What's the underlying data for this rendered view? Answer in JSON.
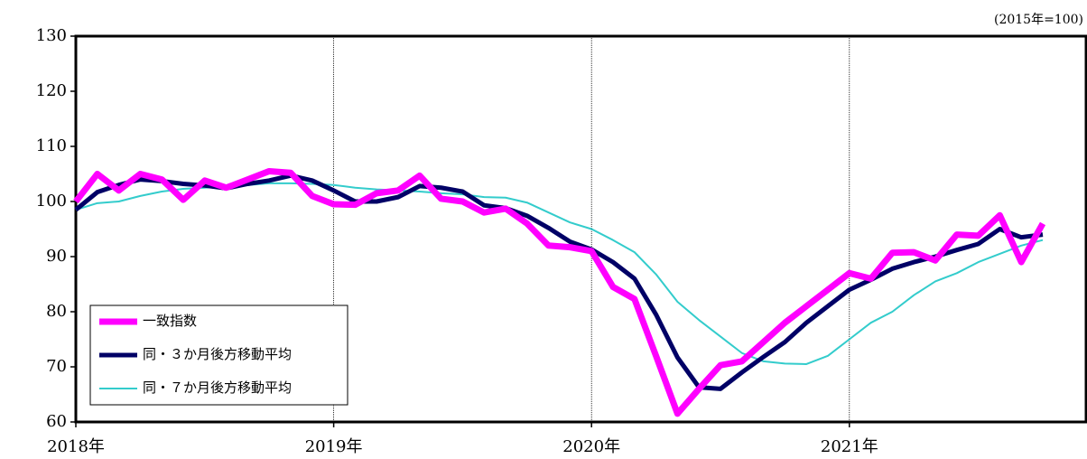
{
  "chart_data": {
    "type": "line",
    "note": "(2015年=100)",
    "categories": [
      "2018年",
      null,
      null,
      null,
      null,
      null,
      null,
      null,
      null,
      null,
      null,
      null,
      "2019年",
      null,
      null,
      null,
      null,
      null,
      null,
      null,
      null,
      null,
      null,
      null,
      "2020年",
      null,
      null,
      null,
      null,
      null,
      null,
      null,
      null,
      null,
      null,
      null,
      "2021年",
      null,
      null,
      null,
      null,
      null,
      null,
      null,
      null,
      null,
      null,
      null
    ],
    "series": [
      {
        "name": "一致指数",
        "color": "#ff00ff",
        "values": [
          100,
          105,
          102,
          105,
          104,
          100.3,
          103.8,
          102.5,
          104,
          105.5,
          105.2,
          101,
          99.5,
          99.4,
          101.5,
          102,
          104.7,
          100.5,
          100,
          98,
          98.7,
          96,
          92,
          91.7,
          91,
          84.5,
          82.3,
          72,
          61.5,
          66,
          70.3,
          71,
          74.5,
          78,
          81,
          84,
          87,
          86,
          90.7,
          90.8,
          89.3,
          94,
          93.8,
          97.5,
          89,
          96,
          null,
          null
        ]
      },
      {
        "name": "同・３か月後方移動平均",
        "color": "#000066",
        "values": [
          98.5,
          101.7,
          103,
          104,
          103.7,
          103.2,
          102.9,
          102.4,
          103.2,
          103.8,
          104.7,
          103.8,
          102,
          100,
          100,
          100.8,
          102.8,
          102.5,
          101.8,
          99.3,
          98.8,
          97.4,
          95.2,
          92.7,
          91.3,
          89,
          86,
          79.5,
          71.7,
          66.3,
          66,
          69,
          71.8,
          74.5,
          78,
          81,
          84,
          85.8,
          87.8,
          89,
          90,
          91.2,
          92.3,
          95,
          93.5,
          94,
          null,
          null
        ]
      },
      {
        "name": "同・７か月後方移動平均",
        "color": "#33cccc",
        "values": [
          98.5,
          99.7,
          100,
          101,
          101.8,
          102.3,
          102.5,
          102.8,
          103,
          103.3,
          103.3,
          103.2,
          103,
          102.5,
          102.2,
          102,
          101.8,
          101.5,
          101.3,
          100.8,
          100.7,
          99.8,
          98,
          96.2,
          95,
          93,
          90.8,
          86.8,
          81.8,
          78.5,
          75.5,
          72.5,
          71,
          70.6,
          70.5,
          72,
          75,
          78,
          80,
          83,
          85.5,
          87,
          89,
          90.5,
          92,
          93,
          null,
          null
        ]
      }
    ],
    "ylim": [
      60,
      130
    ],
    "yticks": [
      60,
      70,
      80,
      90,
      100,
      110,
      120,
      130
    ],
    "legend": "lower left"
  }
}
